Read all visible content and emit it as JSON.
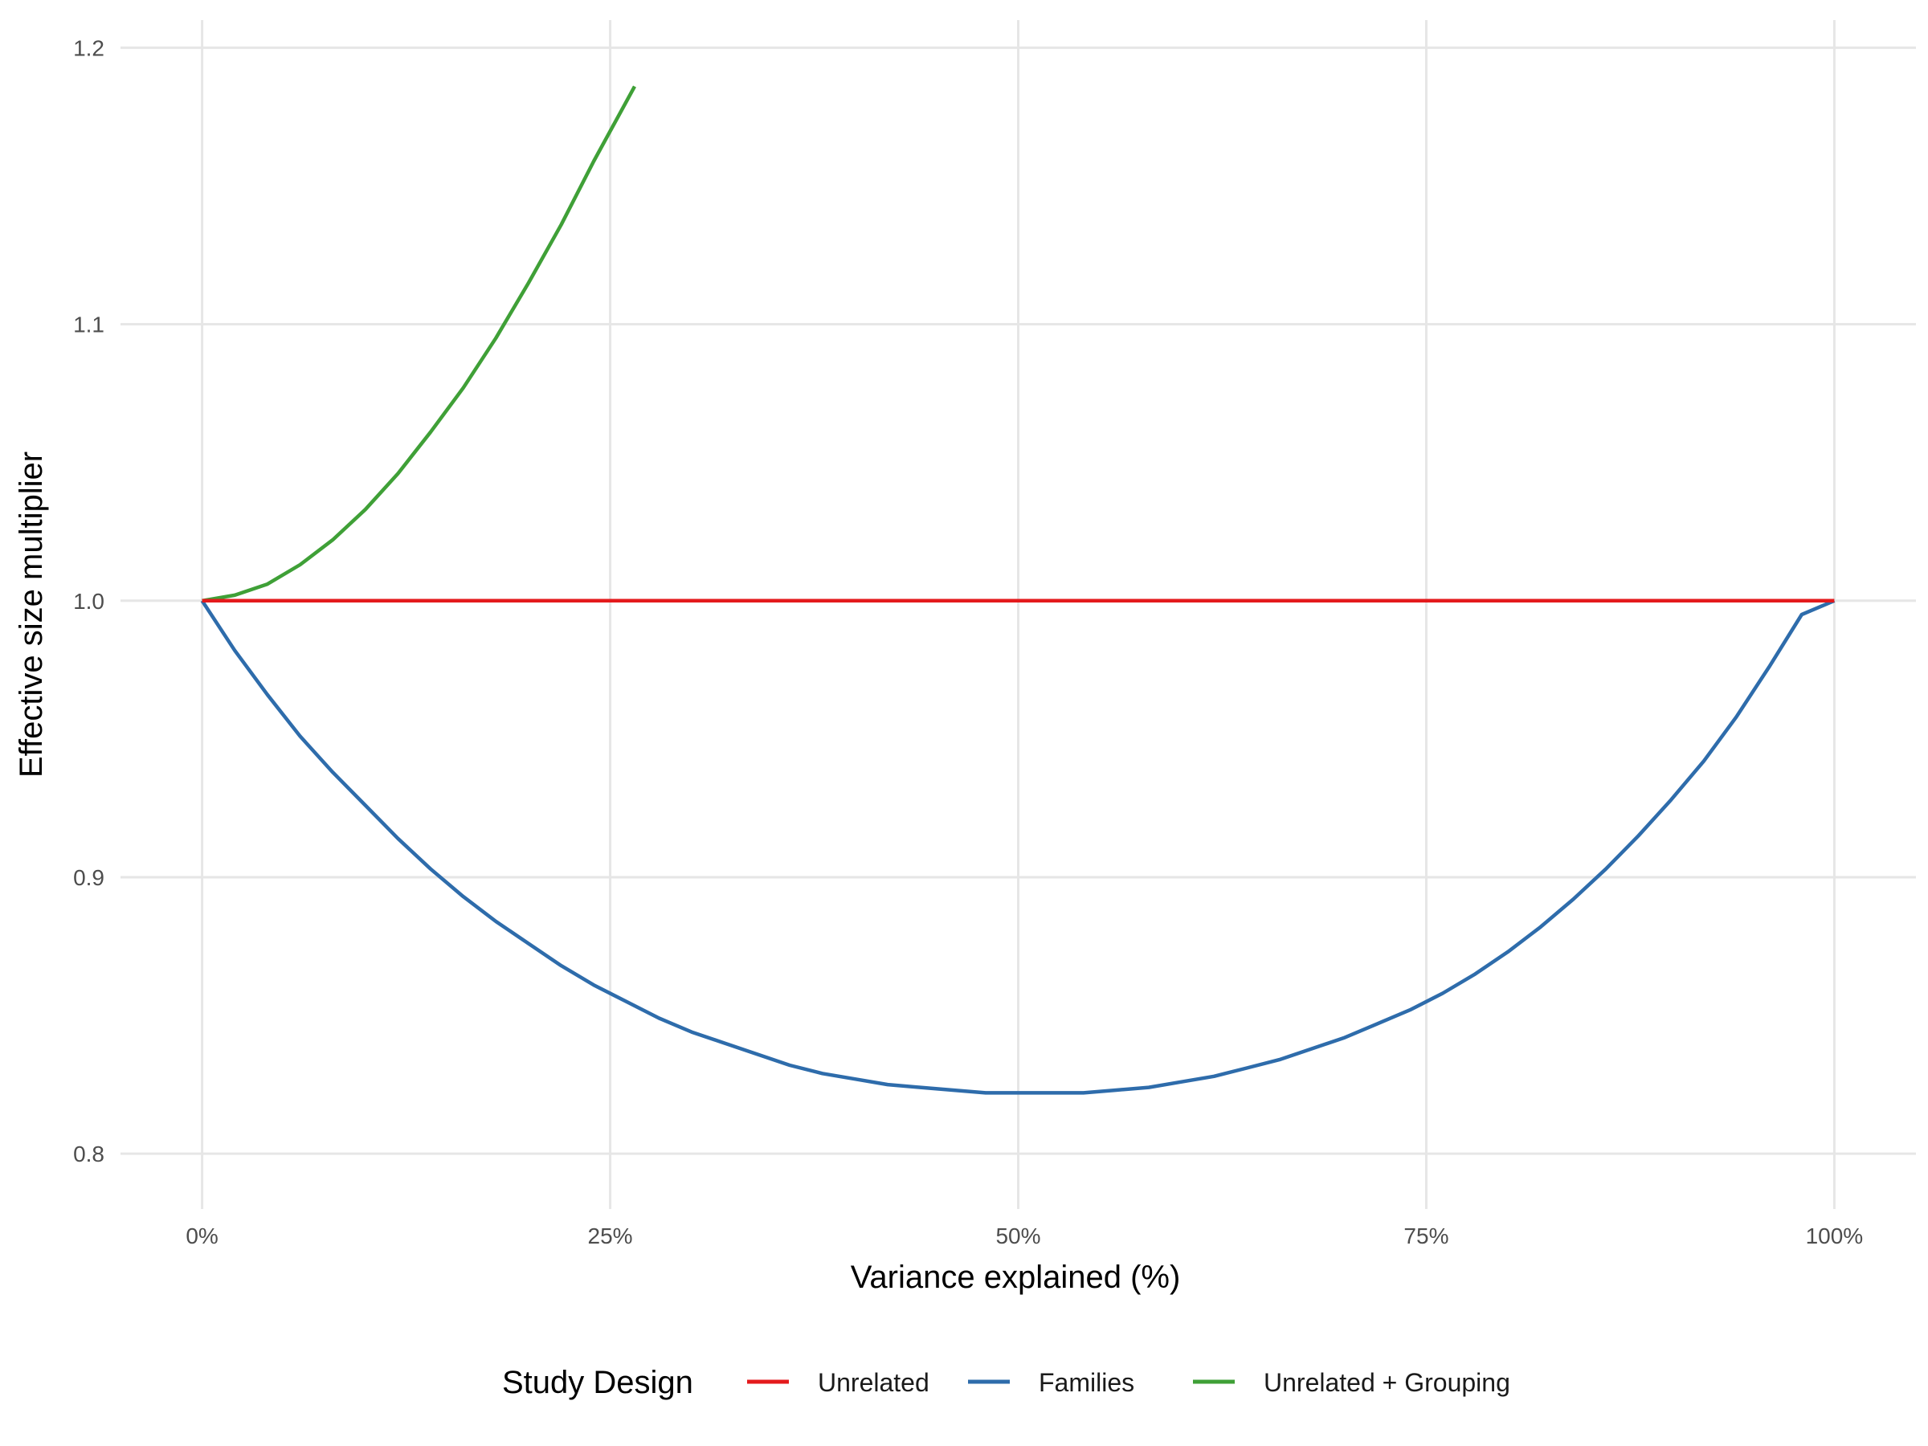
{
  "chart_data": {
    "type": "line",
    "title": "",
    "xlabel": "Variance explained (%)",
    "ylabel": "Effective size multiplier",
    "xlim": [
      -0.05,
      1.05
    ],
    "ylim": [
      0.78,
      1.21
    ],
    "x_ticks": [
      0,
      0.25,
      0.5,
      0.75,
      1.0
    ],
    "x_tick_labels": [
      "0%",
      "25%",
      "50%",
      "75%",
      "100%"
    ],
    "y_ticks": [
      0.8,
      0.9,
      1.0,
      1.1,
      1.2
    ],
    "y_tick_labels": [
      "0.8",
      "0.9",
      "1.0",
      "1.1",
      "1.2"
    ],
    "grid": true,
    "legend_title": "Study Design",
    "legend_position": "bottom",
    "series": [
      {
        "name": "Unrelated",
        "color": "#e41a1c",
        "x": [
          0,
          1.0
        ],
        "y": [
          1.0,
          1.0
        ]
      },
      {
        "name": "Families",
        "color": "#2e6cab",
        "x": [
          0,
          0.02,
          0.04,
          0.06,
          0.08,
          0.1,
          0.12,
          0.14,
          0.16,
          0.18,
          0.2,
          0.22,
          0.24,
          0.26,
          0.28,
          0.3,
          0.32,
          0.34,
          0.36,
          0.38,
          0.4,
          0.42,
          0.44,
          0.46,
          0.48,
          0.5,
          0.52,
          0.54,
          0.56,
          0.58,
          0.6,
          0.62,
          0.64,
          0.66,
          0.68,
          0.7,
          0.72,
          0.74,
          0.76,
          0.78,
          0.8,
          0.82,
          0.84,
          0.86,
          0.88,
          0.9,
          0.92,
          0.94,
          0.96,
          0.98,
          1.0
        ],
        "y": [
          1.0,
          0.982,
          0.966,
          0.951,
          0.938,
          0.926,
          0.914,
          0.903,
          0.893,
          0.884,
          0.876,
          0.868,
          0.861,
          0.855,
          0.849,
          0.844,
          0.84,
          0.836,
          0.832,
          0.829,
          0.827,
          0.825,
          0.824,
          0.823,
          0.822,
          0.822,
          0.822,
          0.822,
          0.823,
          0.824,
          0.826,
          0.828,
          0.831,
          0.834,
          0.838,
          0.842,
          0.847,
          0.852,
          0.858,
          0.865,
          0.873,
          0.882,
          0.892,
          0.903,
          0.915,
          0.928,
          0.942,
          0.958,
          0.976,
          0.995,
          1.0
        ]
      },
      {
        "name": "Unrelated + Grouping",
        "color": "#3fa037",
        "x": [
          0,
          0.02,
          0.04,
          0.06,
          0.08,
          0.1,
          0.12,
          0.14,
          0.16,
          0.18,
          0.2,
          0.22,
          0.24,
          0.265
        ],
        "y": [
          1.0,
          1.002,
          1.006,
          1.013,
          1.022,
          1.033,
          1.046,
          1.061,
          1.077,
          1.095,
          1.115,
          1.136,
          1.159,
          1.186
        ]
      }
    ]
  }
}
